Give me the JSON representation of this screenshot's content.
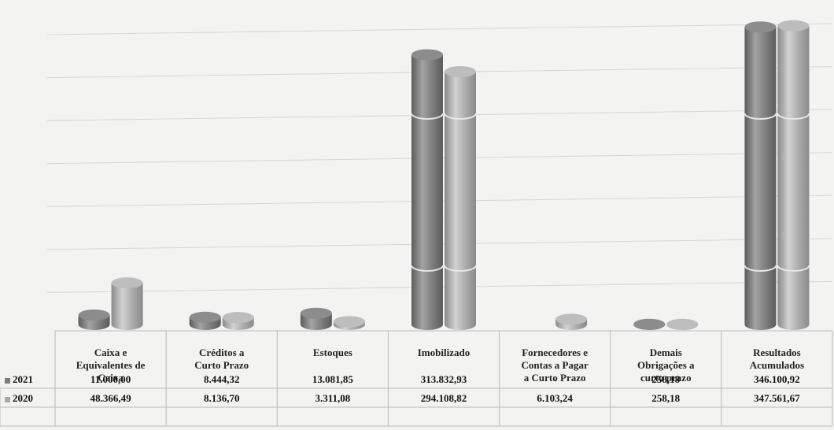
{
  "chart_data": {
    "type": "bar",
    "categories": [
      "Caixa e Equivalentes de Caixa",
      "Créditos a Curto Prazo",
      "Estoques",
      "Imobilizado",
      "Fornecedores e Contas a Pagar a Curto Prazo",
      "Demais Obrigações a curto prazo",
      "Resultados Acumulados"
    ],
    "category_lines": [
      [
        "Caixa e",
        "Equivalentes de",
        "Caixa"
      ],
      [
        "Créditos a",
        "Curto Prazo"
      ],
      [
        "Estoques"
      ],
      [
        "Imobilizado"
      ],
      [
        "Fornecedores e",
        "Contas a Pagar",
        "a Curto Prazo"
      ],
      [
        "Demais",
        "Obrigações a",
        "curto prazo"
      ],
      [
        "Resultados",
        "Acumulados"
      ]
    ],
    "series": [
      {
        "name": "2021",
        "color": "#7d7d7d",
        "values": [
          11000.0,
          8444.32,
          13081.85,
          313832.93,
          0,
          258.18,
          346100.92
        ],
        "labels": [
          "11.000,00",
          "8.444,32",
          "13.081,85",
          "313.832,93",
          "-",
          "258,18",
          "346.100,92"
        ]
      },
      {
        "name": "2020",
        "color": "#a9a9a9",
        "values": [
          48366.49,
          8136.7,
          3311.08,
          294108.82,
          6103.24,
          258.18,
          347561.67
        ],
        "labels": [
          "48.366,49",
          "8.136,70",
          "3.311,08",
          "294.108,82",
          "6.103,24",
          "258,18",
          "347.561,67"
        ]
      }
    ],
    "ylim": [
      0,
      350000
    ],
    "grid": true,
    "legend": "table"
  }
}
